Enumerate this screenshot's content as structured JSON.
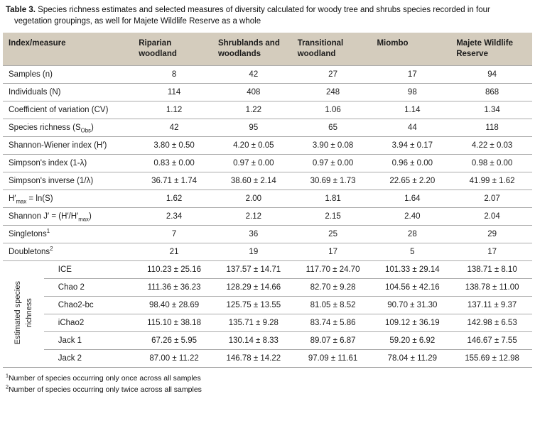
{
  "caption": {
    "label": "Table 3.",
    "text": "Species richness estimates and selected measures of diversity calculated for woody tree and shrubs species recorded in four vegetation groupings, as well for Majete Wildlife Reserve as a whole"
  },
  "table": {
    "header": {
      "index_col": "Index/measure",
      "columns": [
        "Riparian\nwoodland",
        "Shrublands and\nwoodlands",
        "Transitional\nwoodland",
        "Miombo",
        "Majete Wildlife\nReserve"
      ]
    },
    "rows": [
      {
        "label": [
          {
            "t": "Samples (n)"
          }
        ],
        "values": [
          "8",
          "42",
          "27",
          "17",
          "94"
        ]
      },
      {
        "label": [
          {
            "t": "Individuals (N)"
          }
        ],
        "values": [
          "114",
          "408",
          "248",
          "98",
          "868"
        ]
      },
      {
        "label": [
          {
            "t": "Coefficient of variation (CV)"
          }
        ],
        "values": [
          "1.12",
          "1.22",
          "1.06",
          "1.14",
          "1.34"
        ]
      },
      {
        "label": [
          {
            "t": "Species richness (S"
          },
          {
            "t": "Obs",
            "s": "sub"
          },
          {
            "t": ")"
          }
        ],
        "values": [
          "42",
          "95",
          "65",
          "44",
          "118"
        ]
      },
      {
        "label": [
          {
            "t": "Shannon-Wiener index (H′)"
          }
        ],
        "values": [
          "3.80 ± 0.50",
          "4.20 ± 0.05",
          "3.90 ± 0.08",
          "3.94 ± 0.17",
          "4.22 ± 0.03"
        ]
      },
      {
        "label": [
          {
            "t": "Simpson's index (1-λ)"
          }
        ],
        "values": [
          "0.83 ± 0.00",
          "0.97 ± 0.00",
          "0.97 ± 0.00",
          "0.96 ± 0.00",
          "0.98 ± 0.00"
        ]
      },
      {
        "label": [
          {
            "t": "Simpson's inverse (1/λ)"
          }
        ],
        "values": [
          "36.71 ± 1.74",
          "38.60 ± 2.14",
          "30.69 ± 1.73",
          "22.65 ± 2.20",
          "41.99 ± 1.62"
        ]
      },
      {
        "label": [
          {
            "t": "H′"
          },
          {
            "t": "max",
            "s": "sub"
          },
          {
            "t": " = ln(S)"
          }
        ],
        "values": [
          "1.62",
          "2.00",
          "1.81",
          "1.64",
          "2.07"
        ]
      },
      {
        "label": [
          {
            "t": "Shannon J′ = (H′/H′"
          },
          {
            "t": "max",
            "s": "sub"
          },
          {
            "t": ")"
          }
        ],
        "values": [
          "2.34",
          "2.12",
          "2.15",
          "2.40",
          "2.04"
        ]
      },
      {
        "label": [
          {
            "t": "Singletons"
          },
          {
            "t": "1",
            "s": "sup"
          }
        ],
        "values": [
          "7",
          "36",
          "25",
          "28",
          "29"
        ]
      },
      {
        "label": [
          {
            "t": "Doubletons"
          },
          {
            "t": "2",
            "s": "sup"
          }
        ],
        "values": [
          "21",
          "19",
          "17",
          "5",
          "17"
        ]
      }
    ],
    "group": {
      "label": "Estimated species\nrichness",
      "rows": [
        {
          "label": "ICE",
          "values": [
            "110.23 ± 25.16",
            "137.57 ± 14.71",
            "117.70 ± 24.70",
            "101.33 ± 29.14",
            "138.71 ± 8.10"
          ]
        },
        {
          "label": "Chao 2",
          "values": [
            "111.36 ± 36.23",
            "128.29 ± 14.66",
            "82.70 ± 9.28",
            "104.56 ± 42.16",
            "138.78 ± 11.00"
          ]
        },
        {
          "label": "Chao2-bc",
          "values": [
            "98.40 ± 28.69",
            "125.75 ± 13.55",
            "81.05 ± 8.52",
            "90.70 ± 31.30",
            "137.11 ± 9.37"
          ]
        },
        {
          "label": "iChao2",
          "values": [
            "115.10 ± 38.18",
            "135.71 ± 9.28",
            "83.74 ± 5.86",
            "109.12 ± 36.19",
            "142.98 ± 6.53"
          ]
        },
        {
          "label": "Jack 1",
          "values": [
            "67.26 ± 5.95",
            "130.14 ± 8.33",
            "89.07 ± 6.87",
            "59.20 ± 6.92",
            "146.67 ± 7.55"
          ]
        },
        {
          "label": "Jack 2",
          "values": [
            "87.00 ± 11.22",
            "146.78 ± 14.22",
            "97.09 ± 11.61",
            "78.04 ± 11.29",
            "155.69 ± 12.98"
          ]
        }
      ]
    }
  },
  "footnotes": [
    {
      "marker": "1",
      "text": "Number of species occurring only once across all samples"
    },
    {
      "marker": "2",
      "text": "Number of species occurring only twice across all samples"
    }
  ]
}
